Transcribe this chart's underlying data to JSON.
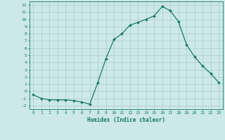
{
  "x": [
    0,
    1,
    2,
    3,
    4,
    5,
    6,
    7,
    8,
    9,
    10,
    11,
    12,
    13,
    14,
    15,
    16,
    17,
    18,
    19,
    20,
    21,
    22,
    23
  ],
  "y": [
    -0.5,
    -1.0,
    -1.2,
    -1.2,
    -1.2,
    -1.3,
    -1.5,
    -1.8,
    1.2,
    4.5,
    7.2,
    8.0,
    9.2,
    9.6,
    10.0,
    10.5,
    11.8,
    11.2,
    9.7,
    6.5,
    4.8,
    3.5,
    2.5,
    1.2
  ],
  "line_color": "#1a7a6a",
  "marker_color": "#1a7a6a",
  "bg_color": "#cce8e8",
  "grid_color": "#aacece",
  "xlabel": "Humidex (Indice chaleur)",
  "xlim": [
    -0.5,
    23.5
  ],
  "ylim": [
    -2.5,
    12.5
  ],
  "yticks": [
    -2,
    -1,
    0,
    1,
    2,
    3,
    4,
    5,
    6,
    7,
    8,
    9,
    10,
    11,
    12
  ],
  "xticks": [
    0,
    1,
    2,
    3,
    4,
    5,
    6,
    7,
    8,
    9,
    10,
    11,
    12,
    13,
    14,
    15,
    16,
    17,
    18,
    19,
    20,
    21,
    22,
    23
  ],
  "marker_size": 2.0,
  "line_width": 0.9
}
